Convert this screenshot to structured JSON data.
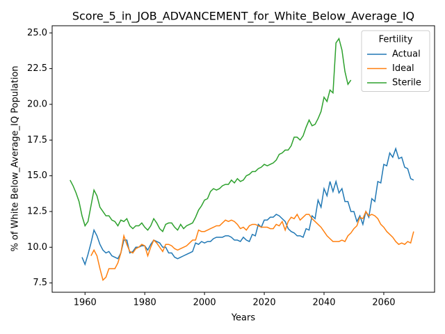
{
  "chart_data": {
    "type": "line",
    "title": "Score_5_in_JOB_ADVANCEMENT_for_White_Below_Average_IQ",
    "x_label": "Years",
    "y_label": "% of White Below_Average_IQ Population",
    "legend_title": "Fertility",
    "legend": "upper right",
    "grid": false,
    "xlim": [
      1949,
      2077
    ],
    "ylim": [
      6.85,
      25.5
    ],
    "xticks": [
      1960,
      1980,
      2000,
      2020,
      2040,
      2060
    ],
    "yticks": [
      7.5,
      {
        "value": 10.0,
        "label": "10.0"
      },
      12.5,
      {
        "value": 15.0,
        "label": "15.0"
      },
      17.5,
      {
        "value": 20.0,
        "label": "20.0"
      },
      22.5,
      {
        "value": 25.0,
        "label": "25.0"
      }
    ],
    "x": [
      1955,
      1956,
      1957,
      1958,
      1959,
      1960,
      1961,
      1962,
      1963,
      1964,
      1965,
      1966,
      1967,
      1968,
      1969,
      1970,
      1971,
      1972,
      1973,
      1974,
      1975,
      1976,
      1977,
      1978,
      1979,
      1980,
      1981,
      1982,
      1983,
      1984,
      1985,
      1986,
      1987,
      1988,
      1989,
      1990,
      1991,
      1992,
      1993,
      1994,
      1995,
      1996,
      1997,
      1998,
      1999,
      2000,
      2001,
      2002,
      2003,
      2004,
      2005,
      2006,
      2007,
      2008,
      2009,
      2010,
      2011,
      2012,
      2013,
      2014,
      2015,
      2016,
      2017,
      2018,
      2019,
      2020,
      2021,
      2022,
      2023,
      2024,
      2025,
      2026,
      2027,
      2028,
      2029,
      2030,
      2031,
      2032,
      2033,
      2034,
      2035,
      2036,
      2037,
      2038,
      2039,
      2040,
      2041,
      2042,
      2043,
      2044,
      2045,
      2046,
      2047,
      2048,
      2049,
      2050,
      2051,
      2052,
      2053,
      2054,
      2055,
      2056,
      2057,
      2058,
      2059,
      2060,
      2061,
      2062,
      2063,
      2064,
      2065,
      2066,
      2067,
      2068,
      2069,
      2070
    ],
    "series": [
      {
        "name": "Actual",
        "color": "#1f77b4",
        "values": [
          null,
          null,
          null,
          null,
          9.3,
          8.8,
          9.5,
          10.3,
          11.2,
          10.8,
          10.2,
          9.8,
          9.6,
          9.7,
          9.4,
          9.3,
          9.2,
          9.6,
          10.5,
          10.5,
          9.6,
          9.7,
          10.0,
          10.0,
          10.1,
          10.1,
          9.8,
          10.2,
          10.5,
          10.4,
          10.3,
          10.0,
          10.0,
          9.6,
          9.6,
          9.3,
          9.2,
          9.3,
          9.4,
          9.5,
          9.6,
          9.7,
          10.3,
          10.2,
          10.4,
          10.3,
          10.4,
          10.4,
          10.6,
          10.7,
          10.7,
          10.7,
          10.8,
          10.8,
          10.7,
          10.5,
          10.5,
          10.4,
          10.7,
          10.5,
          10.4,
          10.9,
          10.8,
          11.6,
          11.4,
          11.9,
          11.9,
          12.1,
          12.1,
          12.3,
          12.2,
          12.0,
          11.8,
          11.3,
          11.1,
          11.0,
          10.8,
          10.8,
          10.7,
          11.3,
          11.2,
          12.2,
          12.0,
          13.3,
          12.8,
          14.1,
          13.6,
          14.6,
          13.9,
          14.6,
          13.8,
          14.1,
          13.2,
          13.2,
          12.5,
          12.5,
          11.8,
          12.2,
          11.6,
          12.5,
          12.1,
          13.4,
          13.2,
          14.6,
          14.5,
          15.8,
          15.7,
          16.6,
          16.3,
          16.9,
          16.2,
          16.3,
          15.6,
          15.5,
          14.8,
          14.7
        ]
      },
      {
        "name": "Ideal",
        "color": "#ff7f0e",
        "values": [
          null,
          null,
          null,
          null,
          null,
          null,
          null,
          9.4,
          9.8,
          9.4,
          8.5,
          7.7,
          7.9,
          8.5,
          8.5,
          8.5,
          8.9,
          9.6,
          10.8,
          10.2,
          9.7,
          9.6,
          9.9,
          10.0,
          10.2,
          10.1,
          9.4,
          10.0,
          10.5,
          10.3,
          10.0,
          9.7,
          10.2,
          10.2,
          10.1,
          9.9,
          9.8,
          9.9,
          10.0,
          10.1,
          10.3,
          10.5,
          10.5,
          11.2,
          11.1,
          11.1,
          11.2,
          11.3,
          11.4,
          11.5,
          11.5,
          11.7,
          11.9,
          11.8,
          11.9,
          11.8,
          11.6,
          11.3,
          11.4,
          11.2,
          11.5,
          11.6,
          11.6,
          11.5,
          11.4,
          11.4,
          11.4,
          11.3,
          11.3,
          11.6,
          11.5,
          11.8,
          11.2,
          11.8,
          12.1,
          12.0,
          12.3,
          11.9,
          12.1,
          12.3,
          12.3,
          12.0,
          11.8,
          11.6,
          11.4,
          11.1,
          10.8,
          10.6,
          10.4,
          10.4,
          10.4,
          10.5,
          10.4,
          10.8,
          11.0,
          11.3,
          11.5,
          12.1,
          12.0,
          12.5,
          12.2,
          12.3,
          12.2,
          12.0,
          11.6,
          11.4,
          11.1,
          10.9,
          10.7,
          10.4,
          10.2,
          10.3,
          10.2,
          10.4,
          10.3,
          11.1
        ]
      },
      {
        "name": "Sterile",
        "color": "#2ca02c",
        "values": [
          14.7,
          14.3,
          13.8,
          13.2,
          12.2,
          11.5,
          11.8,
          12.9,
          14.0,
          13.6,
          12.8,
          12.5,
          12.2,
          12.2,
          11.9,
          11.8,
          11.5,
          11.9,
          11.8,
          12.0,
          11.5,
          11.3,
          11.5,
          11.5,
          11.7,
          11.4,
          11.2,
          11.5,
          12.0,
          11.7,
          11.3,
          11.1,
          11.6,
          11.7,
          11.7,
          11.4,
          11.2,
          11.6,
          11.3,
          11.5,
          11.6,
          11.7,
          12.1,
          12.6,
          12.9,
          13.3,
          13.4,
          13.9,
          14.1,
          14.0,
          14.1,
          14.3,
          14.4,
          14.4,
          14.7,
          14.5,
          14.8,
          14.6,
          14.7,
          15.0,
          15.1,
          15.3,
          15.3,
          15.5,
          15.6,
          15.8,
          15.7,
          15.8,
          15.9,
          16.1,
          16.5,
          16.6,
          16.8,
          16.8,
          17.1,
          17.7,
          17.7,
          17.5,
          17.8,
          18.4,
          18.9,
          18.5,
          18.6,
          19.0,
          19.5,
          20.5,
          20.2,
          21.0,
          20.8,
          24.3,
          24.6,
          23.8,
          22.3,
          21.4,
          21.7,
          null,
          null,
          null,
          null,
          null,
          null,
          null,
          null,
          null,
          null,
          null,
          null,
          null,
          null,
          null,
          null,
          null,
          null,
          null,
          null,
          null
        ]
      }
    ]
  }
}
